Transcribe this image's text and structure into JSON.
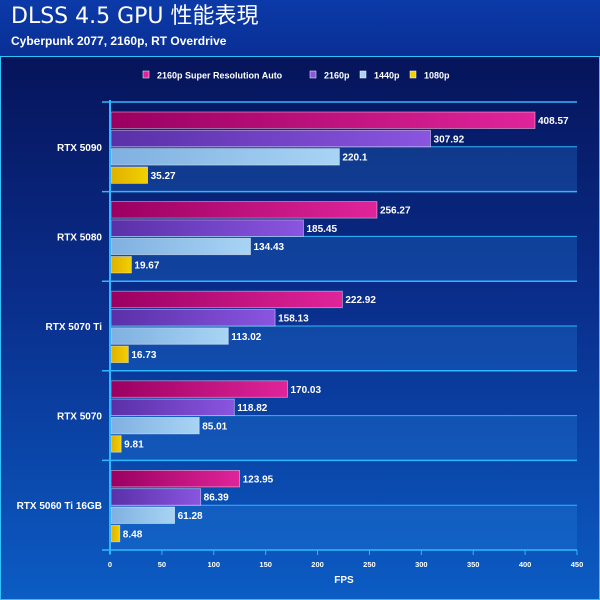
{
  "chart_data": {
    "type": "bar",
    "orientation": "horizontal",
    "title": "DLSS 4.5 GPU 性能表現",
    "subtitle": "Cyberpunk 2077, 2160p, RT Overdrive",
    "xlabel": "FPS",
    "xlim": [
      0,
      450
    ],
    "xticks": [
      0,
      50,
      100,
      150,
      200,
      250,
      300,
      350,
      400,
      450
    ],
    "legend_position": "top",
    "categories": [
      "RTX 5090",
      "RTX 5080",
      "RTX 5070 Ti",
      "RTX 5070",
      "RTX 5060 Ti 16GB"
    ],
    "series": [
      {
        "name": "2160p Super Resolution Auto",
        "color": "#e0249a",
        "values": [
          408.57,
          256.27,
          222.92,
          170.03,
          123.95
        ]
      },
      {
        "name": "2160p",
        "color": "#8a55e0",
        "values": [
          307.92,
          185.45,
          158.13,
          118.82,
          86.39
        ]
      },
      {
        "name": "1440p",
        "color": "#a8d4f4",
        "values": [
          220.1,
          134.43,
          113.02,
          85.01,
          61.28
        ]
      },
      {
        "name": "1080p",
        "color": "#f2d000",
        "values": [
          35.27,
          19.67,
          16.73,
          9.81,
          8.48
        ]
      }
    ]
  }
}
